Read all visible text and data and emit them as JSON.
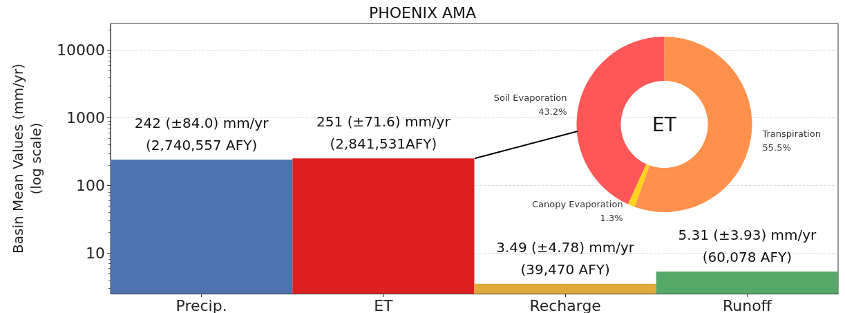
{
  "chart_data": [
    {
      "type": "bar",
      "title": "PHOENIX AMA",
      "ylabel": "Basin Mean Values (mm/yr)\n(log scale)",
      "categories": [
        "Precip.",
        "ET",
        "Recharge",
        "Runoff"
      ],
      "values": [
        242,
        251,
        3.49,
        5.31
      ],
      "colors": [
        "#4c72b0",
        "#dd1f20",
        "#e0a93a",
        "#55a868"
      ],
      "value_labels": [
        "242 (±84.0) mm/yr\n(2,740,557 AFY)",
        "251 (±71.6) mm/yr\n(2,841,531AFY)",
        "3.49 (±4.78) mm/yr\n(39,470 AFY)",
        "5.31 (±3.93) mm/yr\n(60,078 AFY)"
      ],
      "log": true,
      "ylim": [
        2.5,
        25000
      ],
      "yticks": [
        10,
        100,
        1000,
        10000
      ],
      "grid": "y"
    },
    {
      "type": "donut",
      "title": "ET",
      "categories": [
        "Transpiration",
        "Canopy Evaporation",
        "Soil Evaporation"
      ],
      "values": [
        55.5,
        1.3,
        43.2
      ],
      "colors": [
        "#ff914d",
        "#ffd21f",
        "#ff5757"
      ],
      "value_labels": [
        "55.5%",
        "1.3%",
        "43.2%"
      ]
    }
  ]
}
